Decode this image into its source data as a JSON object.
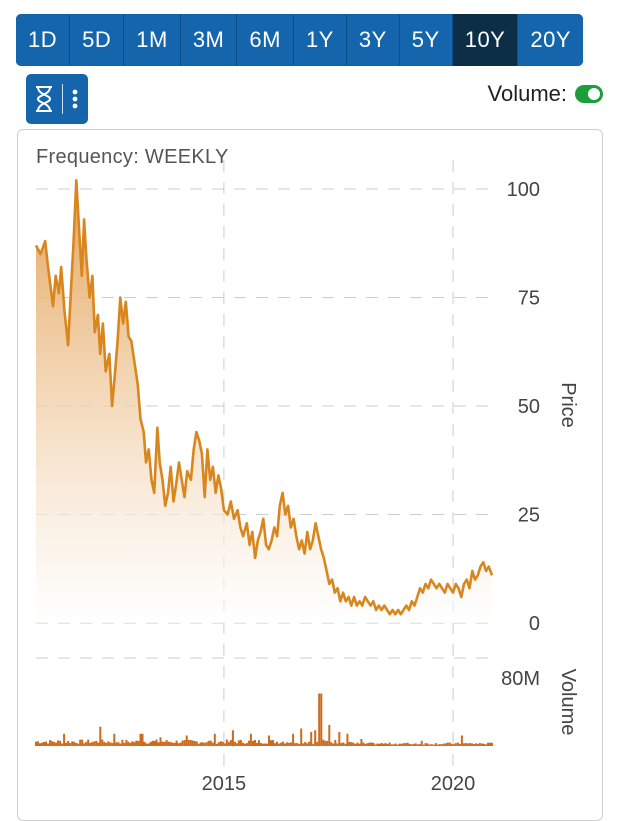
{
  "range_buttons": {
    "items": [
      "1D",
      "5D",
      "1M",
      "3M",
      "6M",
      "1Y",
      "3Y",
      "5Y",
      "10Y",
      "20Y"
    ],
    "active": "10Y"
  },
  "tools": {
    "icon": "hourglass-icon",
    "menu_icon": "vertical-dots-icon"
  },
  "volume_toggle": {
    "label": "Volume:",
    "on": true,
    "color": "#1e9e3a"
  },
  "frequency_label": "Frequency: WEEKLY",
  "chart_data": [
    {
      "type": "area",
      "ylabel": "Price",
      "ylim": [
        0,
        100
      ],
      "yticks": [
        0,
        25,
        50,
        75,
        100
      ],
      "xlim": [
        2010.9,
        2020.85
      ],
      "xticks": [
        2015,
        2020
      ],
      "xtick_labels": [
        "2015",
        "2020"
      ],
      "line_color": "#d9861e",
      "fill_top_color": "#e3a052",
      "grid": "dashed",
      "points": [
        [
          2010.9,
          87
        ],
        [
          2011.0,
          85
        ],
        [
          2011.1,
          88
        ],
        [
          2011.15,
          83
        ],
        [
          2011.2,
          79
        ],
        [
          2011.27,
          73
        ],
        [
          2011.33,
          80
        ],
        [
          2011.4,
          76
        ],
        [
          2011.45,
          82
        ],
        [
          2011.52,
          72
        ],
        [
          2011.6,
          64
        ],
        [
          2011.66,
          76
        ],
        [
          2011.72,
          88
        ],
        [
          2011.78,
          102
        ],
        [
          2011.85,
          89
        ],
        [
          2011.9,
          80
        ],
        [
          2011.95,
          93
        ],
        [
          2012.0,
          84
        ],
        [
          2012.07,
          75
        ],
        [
          2012.13,
          80
        ],
        [
          2012.18,
          67
        ],
        [
          2012.25,
          71
        ],
        [
          2012.3,
          62
        ],
        [
          2012.36,
          69
        ],
        [
          2012.42,
          58
        ],
        [
          2012.5,
          62
        ],
        [
          2012.56,
          50
        ],
        [
          2012.62,
          57
        ],
        [
          2012.68,
          65
        ],
        [
          2012.74,
          75
        ],
        [
          2012.8,
          69
        ],
        [
          2012.86,
          74
        ],
        [
          2012.92,
          66
        ],
        [
          2012.98,
          65
        ],
        [
          2013.05,
          60
        ],
        [
          2013.12,
          55
        ],
        [
          2013.18,
          47
        ],
        [
          2013.25,
          44
        ],
        [
          2013.3,
          37
        ],
        [
          2013.36,
          40
        ],
        [
          2013.42,
          33
        ],
        [
          2013.48,
          30
        ],
        [
          2013.55,
          45
        ],
        [
          2013.6,
          37
        ],
        [
          2013.66,
          33
        ],
        [
          2013.72,
          27
        ],
        [
          2013.78,
          30
        ],
        [
          2013.84,
          36
        ],
        [
          2013.9,
          28
        ],
        [
          2013.96,
          32
        ],
        [
          2014.02,
          37
        ],
        [
          2014.08,
          33
        ],
        [
          2014.14,
          29
        ],
        [
          2014.2,
          35
        ],
        [
          2014.28,
          33
        ],
        [
          2014.34,
          40
        ],
        [
          2014.4,
          44
        ],
        [
          2014.46,
          42
        ],
        [
          2014.52,
          39
        ],
        [
          2014.58,
          29
        ],
        [
          2014.64,
          40
        ],
        [
          2014.7,
          33
        ],
        [
          2014.76,
          36
        ],
        [
          2014.82,
          30
        ],
        [
          2014.88,
          34
        ],
        [
          2014.94,
          31
        ],
        [
          2015.0,
          26
        ],
        [
          2015.08,
          25
        ],
        [
          2015.15,
          28
        ],
        [
          2015.22,
          24
        ],
        [
          2015.3,
          26
        ],
        [
          2015.36,
          22
        ],
        [
          2015.42,
          20
        ],
        [
          2015.5,
          23
        ],
        [
          2015.56,
          18
        ],
        [
          2015.62,
          21
        ],
        [
          2015.68,
          15
        ],
        [
          2015.74,
          19
        ],
        [
          2015.8,
          21
        ],
        [
          2015.86,
          24
        ],
        [
          2015.92,
          18
        ],
        [
          2015.98,
          17
        ],
        [
          2016.04,
          19
        ],
        [
          2016.1,
          22
        ],
        [
          2016.16,
          20
        ],
        [
          2016.22,
          27
        ],
        [
          2016.28,
          30
        ],
        [
          2016.34,
          25
        ],
        [
          2016.4,
          27
        ],
        [
          2016.46,
          22
        ],
        [
          2016.52,
          24
        ],
        [
          2016.58,
          20
        ],
        [
          2016.64,
          17
        ],
        [
          2016.7,
          19
        ],
        [
          2016.76,
          16
        ],
        [
          2016.82,
          21
        ],
        [
          2016.88,
          17
        ],
        [
          2016.94,
          19
        ],
        [
          2017.0,
          23
        ],
        [
          2017.06,
          20
        ],
        [
          2017.12,
          17
        ],
        [
          2017.18,
          15
        ],
        [
          2017.24,
          12
        ],
        [
          2017.3,
          9
        ],
        [
          2017.36,
          10
        ],
        [
          2017.42,
          7
        ],
        [
          2017.48,
          8
        ],
        [
          2017.54,
          5
        ],
        [
          2017.6,
          7
        ],
        [
          2017.66,
          5
        ],
        [
          2017.72,
          6
        ],
        [
          2017.78,
          4
        ],
        [
          2017.84,
          6
        ],
        [
          2017.9,
          4
        ],
        [
          2017.96,
          5
        ],
        [
          2018.02,
          4
        ],
        [
          2018.08,
          6
        ],
        [
          2018.14,
          5
        ],
        [
          2018.2,
          4
        ],
        [
          2018.26,
          5
        ],
        [
          2018.32,
          3
        ],
        [
          2018.38,
          4
        ],
        [
          2018.44,
          3
        ],
        [
          2018.5,
          4
        ],
        [
          2018.56,
          3
        ],
        [
          2018.62,
          2
        ],
        [
          2018.68,
          3
        ],
        [
          2018.74,
          2
        ],
        [
          2018.8,
          3
        ],
        [
          2018.86,
          2
        ],
        [
          2018.92,
          3
        ],
        [
          2018.98,
          4
        ],
        [
          2019.04,
          3
        ],
        [
          2019.1,
          5
        ],
        [
          2019.16,
          4
        ],
        [
          2019.22,
          6
        ],
        [
          2019.28,
          8
        ],
        [
          2019.34,
          7
        ],
        [
          2019.4,
          9
        ],
        [
          2019.46,
          8
        ],
        [
          2019.52,
          10
        ],
        [
          2019.58,
          9
        ],
        [
          2019.64,
          8
        ],
        [
          2019.7,
          9
        ],
        [
          2019.76,
          8
        ],
        [
          2019.82,
          7
        ],
        [
          2019.88,
          9
        ],
        [
          2019.94,
          8
        ],
        [
          2020.0,
          7
        ],
        [
          2020.06,
          9
        ],
        [
          2020.12,
          8
        ],
        [
          2020.18,
          6
        ],
        [
          2020.24,
          9
        ],
        [
          2020.3,
          10
        ],
        [
          2020.36,
          8
        ],
        [
          2020.42,
          12
        ],
        [
          2020.48,
          10
        ],
        [
          2020.54,
          11
        ],
        [
          2020.6,
          13
        ],
        [
          2020.66,
          14
        ],
        [
          2020.72,
          12
        ],
        [
          2020.78,
          13
        ],
        [
          2020.85,
          11
        ]
      ]
    },
    {
      "type": "bar",
      "ylabel": "Volume",
      "ylim": [
        0,
        80
      ],
      "yticks": [
        80
      ],
      "ytick_labels": [
        "80M"
      ],
      "xlim": [
        2010.9,
        2020.85
      ],
      "bar_color": "#cc6a1e",
      "spikes": [
        [
          2011.5,
          14
        ],
        [
          2012.3,
          22
        ],
        [
          2012.6,
          14
        ],
        [
          2013.2,
          14
        ],
        [
          2013.6,
          10
        ],
        [
          2014.2,
          12
        ],
        [
          2014.8,
          14
        ],
        [
          2015.2,
          18
        ],
        [
          2015.6,
          14
        ],
        [
          2016.0,
          12
        ],
        [
          2016.5,
          14
        ],
        [
          2016.7,
          20
        ],
        [
          2016.9,
          16
        ],
        [
          2017.0,
          18
        ],
        [
          2017.1,
          60
        ],
        [
          2017.3,
          24
        ],
        [
          2017.5,
          16
        ],
        [
          2017.7,
          14
        ],
        [
          2018.0,
          8
        ],
        [
          2019.3,
          6
        ],
        [
          2020.2,
          12
        ]
      ]
    }
  ]
}
